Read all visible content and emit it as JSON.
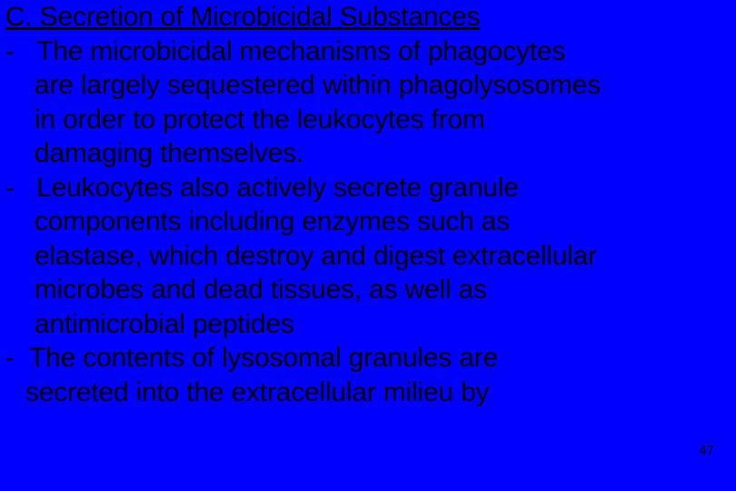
{
  "slide": {
    "background_color": "#0000ff",
    "text_color": "#000000",
    "font_family": "Arial",
    "heading_fontsize": 30,
    "body_fontsize": 30,
    "page_number_fontsize": 15,
    "heading": "C. Secretion of Microbicidal Substances",
    "bullets": [
      {
        "dash": "-",
        "first_line": "The microbicidal mechanisms of phagocytes",
        "cont_lines": [
          "are largely sequestered within phagolysosomes",
          "in order to protect the leukocytes from",
          "damaging themselves."
        ]
      },
      {
        "dash": "-",
        "first_line": "Leukocytes also actively secrete granule",
        "cont_lines": [
          "components including  enzymes such as",
          "elastase, which destroy and digest extracellular",
          "microbes and dead tissues, as well as",
          "antimicrobial peptides"
        ]
      },
      {
        "dash": " -",
        "first_line": "The contents of lysosomal granules are",
        "cont_lines": [
          "secreted into the  extracellular milieu by"
        ]
      }
    ],
    "page_number": "47"
  }
}
